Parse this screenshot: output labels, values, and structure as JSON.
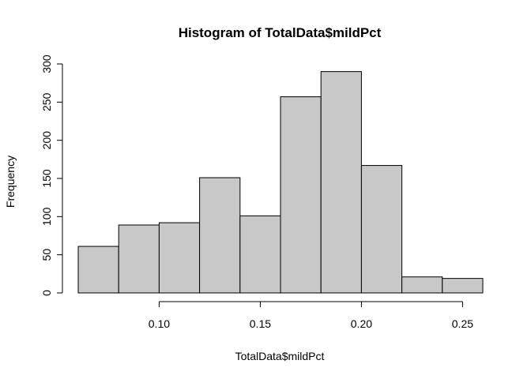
{
  "chart_data": {
    "type": "bar",
    "title": "Histogram of TotalData$mildPct",
    "xlabel": "TotalData$mildPct",
    "ylabel": "Frequency",
    "bin_edges": [
      0.06,
      0.08,
      0.1,
      0.12,
      0.14,
      0.16,
      0.18,
      0.2,
      0.22,
      0.24,
      0.26
    ],
    "values": [
      61,
      89,
      92,
      151,
      101,
      257,
      290,
      167,
      21,
      19
    ],
    "xlim": [
      0.06,
      0.26
    ],
    "ylim": [
      0,
      300
    ],
    "x_ticks": [
      0.1,
      0.15,
      0.2,
      0.25
    ],
    "x_tick_labels": [
      "0.10",
      "0.15",
      "0.20",
      "0.25"
    ],
    "y_ticks": [
      0,
      50,
      100,
      150,
      200,
      250,
      300
    ],
    "y_tick_labels": [
      "0",
      "50",
      "100",
      "150",
      "200",
      "250",
      "300"
    ],
    "bar_color": "#c8c8c8",
    "border_color": "#000000",
    "grid": false
  }
}
